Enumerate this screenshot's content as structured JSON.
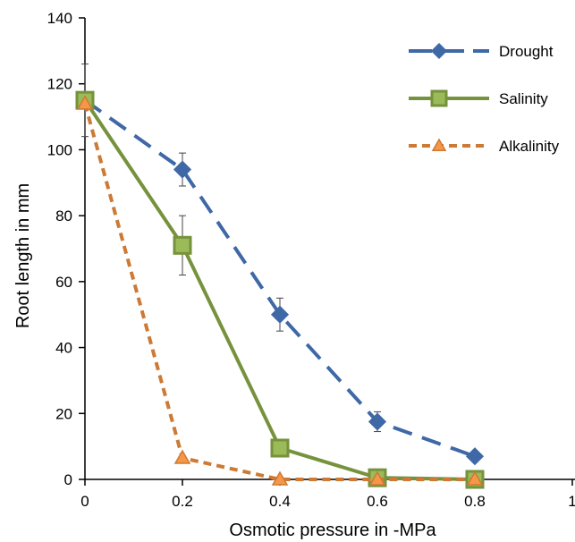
{
  "chart_data": {
    "type": "line",
    "xlabel": "Osmotic pressure in -MPa",
    "ylabel": "Root length in mm",
    "xlim": [
      0,
      1
    ],
    "ylim": [
      0,
      140
    ],
    "x_ticks": [
      "0",
      "0.2",
      "0.4",
      "0.6",
      "0.8",
      "1"
    ],
    "y_ticks": [
      "0",
      "20",
      "40",
      "60",
      "80",
      "100",
      "120",
      "140"
    ],
    "legend_position": "top-right",
    "grid": false,
    "series": [
      {
        "name": "Drought",
        "color": "#3f68a6",
        "marker": "diamond",
        "line_style": "long-dash",
        "x": [
          0,
          0.2,
          0.4,
          0.6,
          0.8
        ],
        "y": [
          115,
          94,
          50,
          17.5,
          7
        ],
        "error": [
          11,
          5,
          5,
          3,
          1
        ]
      },
      {
        "name": "Salinity",
        "color": "#76923c",
        "marker": "square",
        "line_style": "solid",
        "x": [
          0,
          0.2,
          0.4,
          0.6,
          0.8
        ],
        "y": [
          115,
          71,
          9.5,
          0.5,
          0
        ],
        "error": [
          0,
          9,
          0,
          0,
          0
        ]
      },
      {
        "name": "Alkalinity",
        "color": "#cc7a35",
        "marker": "triangle",
        "line_style": "short-dash",
        "x": [
          0,
          0.2,
          0.4,
          0.6,
          0.8
        ],
        "y": [
          114,
          6.5,
          0,
          0,
          0
        ],
        "error": [
          0,
          0,
          0,
          0,
          0
        ]
      }
    ]
  }
}
